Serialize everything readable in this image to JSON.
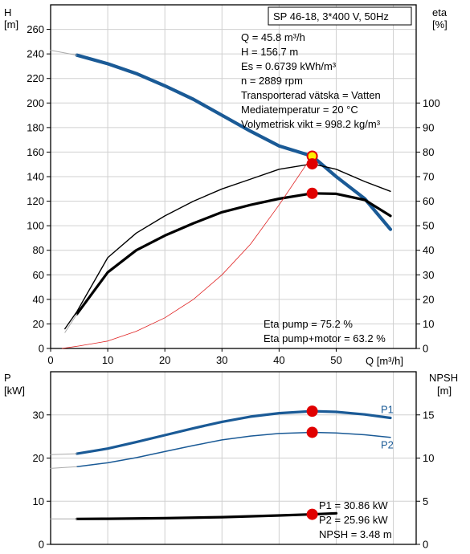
{
  "chart_data": [
    {
      "type": "line",
      "title": "SP 46-18, 3*400 V, 50Hz",
      "xlabel": "Q [m³/h]",
      "ylabel_left": "H",
      "ylabel_left_unit": "[m]",
      "ylabel_right": "eta",
      "ylabel_right_unit": "[%]",
      "xlim": [
        0,
        64
      ],
      "ylim_left": [
        0,
        280
      ],
      "ylim_right": [
        0,
        140
      ],
      "x_ticks": [
        "0",
        "10",
        "20",
        "30",
        "40",
        "50"
      ],
      "y_left_ticks": [
        "0",
        "20",
        "40",
        "60",
        "80",
        "100",
        "120",
        "140",
        "160",
        "180",
        "200",
        "220",
        "240",
        "260"
      ],
      "y_right_ticks": [
        "0",
        "10",
        "20",
        "30",
        "40",
        "50",
        "60",
        "70",
        "80",
        "90",
        "100"
      ],
      "grid": true,
      "info_lines": [
        "Q = 45.8 m³/h",
        "H = 156.7 m",
        "Es = 0.6739 kWh/m³",
        "n = 2889 rpm",
        "Transporterad vätska = Vatten",
        "Mediatemperatur = 20 °C",
        "Volymetrisk vikt = 998.2 kg/m³"
      ],
      "eta_lines": [
        "Eta pump = 75.2 %",
        "Eta pump+motor = 63.2 %"
      ],
      "series": [
        {
          "axis": "left",
          "color": "#1a5a96",
          "width": 4.2,
          "x": [
            4.6,
            10,
            15,
            20,
            25,
            30,
            35,
            40,
            45.8,
            50,
            55,
            59.5
          ],
          "y": [
            239,
            232,
            224,
            214,
            203,
            190,
            177,
            165,
            156.7,
            140,
            122,
            97
          ]
        },
        {
          "axis": "left",
          "color": "#aaaaaa",
          "width": 1,
          "x": [
            0,
            4.6
          ],
          "y": [
            243,
            239
          ]
        },
        {
          "axis": "right",
          "color": "#000000",
          "width": 1.4,
          "x": [
            2.5,
            4.6,
            10,
            15,
            20,
            25,
            30,
            35,
            40,
            45.8,
            50,
            55,
            59.5
          ],
          "y": [
            8,
            15,
            37,
            47,
            54,
            60,
            65,
            69,
            73,
            75.2,
            73,
            68,
            64
          ]
        },
        {
          "axis": "right",
          "color": "#000000",
          "width": 3.2,
          "x": [
            4.6,
            10,
            15,
            20,
            25,
            30,
            35,
            40,
            45.8,
            50,
            55,
            59.5
          ],
          "y": [
            14,
            31,
            40,
            46,
            51,
            55.5,
            58.5,
            61,
            63.2,
            63,
            60.5,
            54
          ]
        },
        {
          "axis": "right",
          "color": "#aaaaaa",
          "width": 1,
          "x": [
            2.5,
            4.6
          ],
          "y": [
            6.5,
            14
          ]
        },
        {
          "axis": "left",
          "color": "#e02020",
          "width": 0.8,
          "x": [
            2,
            5,
            10,
            15,
            20,
            25,
            30,
            35,
            40,
            45.8
          ],
          "y": [
            0,
            2,
            6,
            14,
            25,
            40,
            60,
            85,
            117,
            157
          ]
        }
      ],
      "points": [
        {
          "axis": "left",
          "x": 45.8,
          "y": 156.7,
          "fill": "#ffee00",
          "stroke": "#e00000"
        },
        {
          "axis": "right",
          "x": 45.8,
          "y": 75.2,
          "fill": "#e00000",
          "stroke": "#e00000"
        },
        {
          "axis": "right",
          "x": 45.8,
          "y": 63.2,
          "fill": "#e00000",
          "stroke": "#e00000"
        }
      ]
    },
    {
      "type": "line",
      "ylabel_left": "P",
      "ylabel_left_unit": "[kW]",
      "ylabel_right": "NPSH",
      "ylabel_right_unit": "[m]",
      "xlim": [
        0,
        64
      ],
      "ylim_left": [
        0,
        40
      ],
      "ylim_right": [
        0,
        20
      ],
      "y_left_ticks": [
        "0",
        "10",
        "20",
        "30"
      ],
      "y_right_ticks": [
        "0",
        "5",
        "10",
        "15"
      ],
      "grid": true,
      "info_lines": [
        "P1 = 30.86 kW",
        "P2 = 25.96 kW",
        "NPSH = 3.48 m"
      ],
      "series": [
        {
          "name": "P1",
          "axis": "left",
          "color": "#1a5a96",
          "width": 3.2,
          "x": [
            4.6,
            10,
            15,
            20,
            25,
            30,
            35,
            40,
            45.8,
            50,
            55,
            59.5
          ],
          "y": [
            21,
            22.2,
            23.7,
            25.3,
            26.9,
            28.4,
            29.6,
            30.4,
            30.86,
            30.7,
            30.1,
            29.3
          ]
        },
        {
          "axis": "left",
          "color": "#aaaaaa",
          "width": 1,
          "x": [
            0,
            4.6
          ],
          "y": [
            20.8,
            21
          ]
        },
        {
          "name": "P2",
          "axis": "left",
          "color": "#1a5a96",
          "width": 1.5,
          "x": [
            4.6,
            10,
            15,
            20,
            25,
            30,
            35,
            40,
            45.8,
            50,
            55,
            59.5
          ],
          "y": [
            18,
            18.9,
            20.1,
            21.5,
            22.9,
            24.2,
            25.1,
            25.7,
            25.96,
            25.8,
            25.4,
            24.8
          ]
        },
        {
          "axis": "left",
          "color": "#aaaaaa",
          "width": 1,
          "x": [
            0,
            4.6
          ],
          "y": [
            17.6,
            18
          ]
        },
        {
          "axis": "right",
          "color": "#000000",
          "width": 3.2,
          "x": [
            4.6,
            10,
            20,
            30,
            40,
            45.8,
            50
          ],
          "y": [
            2.95,
            2.97,
            3.03,
            3.15,
            3.35,
            3.48,
            3.6
          ]
        },
        {
          "axis": "right",
          "color": "#aaaaaa",
          "width": 1,
          "x": [
            0,
            4.6
          ],
          "y": [
            2.95,
            2.95
          ]
        }
      ],
      "points": [
        {
          "axis": "left",
          "x": 45.8,
          "y": 30.86,
          "fill": "#e00000",
          "stroke": "#e00000"
        },
        {
          "axis": "left",
          "x": 45.8,
          "y": 25.96,
          "fill": "#e00000",
          "stroke": "#e00000"
        },
        {
          "axis": "right",
          "x": 45.8,
          "y": 3.48,
          "fill": "#e00000",
          "stroke": "#e00000"
        }
      ]
    }
  ]
}
